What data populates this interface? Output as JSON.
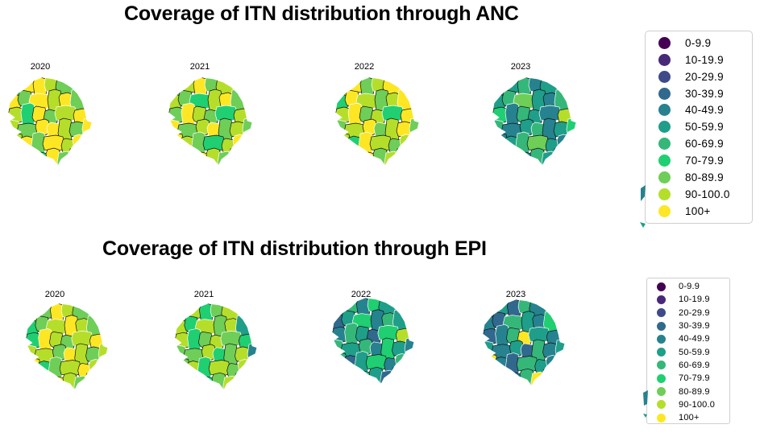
{
  "sections": [
    {
      "id": "anc",
      "title": "Coverage of ITN distribution through ANC",
      "maps": [
        {
          "year": "2020",
          "categories": [
            8,
            10,
            10,
            9,
            8,
            10,
            9,
            10,
            8,
            10,
            9,
            10,
            8,
            10,
            9,
            7,
            10,
            8,
            9,
            10,
            8,
            9
          ]
        },
        {
          "year": "2021",
          "categories": [
            8,
            9,
            10,
            8,
            9,
            8,
            10,
            9,
            8,
            7,
            9,
            10,
            8,
            9,
            8,
            10,
            9,
            8,
            7,
            9,
            8,
            10
          ]
        },
        {
          "year": "2022",
          "categories": [
            9,
            10,
            8,
            9,
            10,
            8,
            9,
            7,
            10,
            9,
            8,
            9,
            10,
            8,
            9,
            10,
            8,
            9,
            7,
            10,
            9,
            8
          ]
        },
        {
          "year": "2023",
          "categories": [
            4,
            5,
            6,
            4,
            5,
            7,
            4,
            5,
            6,
            8,
            5,
            4,
            6,
            5,
            7,
            4,
            6,
            5,
            4,
            9,
            5,
            6
          ]
        }
      ]
    },
    {
      "id": "epi",
      "title": "Coverage of ITN distribution through EPI",
      "maps": [
        {
          "year": "2020",
          "categories": [
            9,
            8,
            10,
            9,
            8,
            9,
            10,
            7,
            8,
            9,
            10,
            9,
            8,
            9,
            7,
            10,
            9,
            8,
            9,
            10,
            8,
            9
          ]
        },
        {
          "year": "2021",
          "categories": [
            8,
            9,
            7,
            8,
            9,
            4,
            8,
            9,
            7,
            9,
            8,
            9,
            5,
            8,
            9,
            7,
            8,
            9,
            8,
            7,
            9,
            8
          ]
        },
        {
          "year": "2022",
          "categories": [
            5,
            6,
            4,
            7,
            5,
            4,
            6,
            3,
            5,
            7,
            4,
            6,
            5,
            8,
            4,
            6,
            5,
            3,
            7,
            9,
            5,
            6
          ]
        },
        {
          "year": "2023",
          "categories": [
            4,
            5,
            3,
            6,
            4,
            5,
            10,
            4,
            3,
            6,
            5,
            4,
            7,
            5,
            3,
            4,
            6,
            10,
            5,
            4,
            3,
            5
          ]
        }
      ]
    }
  ],
  "legend": {
    "labels": [
      "0-9.9",
      "10-19.9",
      "20-29.9",
      "30-39.9",
      "40-49.9",
      "50-59.9",
      "60-69.9",
      "70-79.9",
      "80-89.9",
      "90-100.0",
      "100+"
    ],
    "colors": [
      "#440154",
      "#482878",
      "#3e4a89",
      "#31688e",
      "#26828e",
      "#1f9e89",
      "#35b779",
      "#1fcf72",
      "#6ece58",
      "#b5de2b",
      "#fde725"
    ]
  }
}
